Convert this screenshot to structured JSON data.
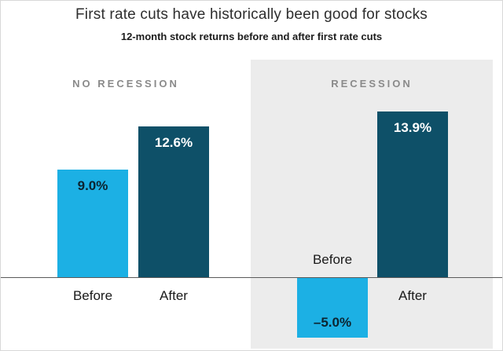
{
  "chart_data": {
    "type": "bar",
    "title": "First rate cuts have historically been good for stocks",
    "subtitle": "12-month stock returns before and after first rate cuts",
    "ylabel": "",
    "xlabel": "",
    "ylim": [
      -6.5,
      15.5
    ],
    "grid": false,
    "legend": "none",
    "colors": {
      "before_bar": "#1cb0e4",
      "after_bar": "#0e5068",
      "light_bar_text": "#0c2430",
      "dark_bar_text": "#ffffff",
      "recession_panel_bg": "#ececec"
    },
    "panels": [
      {
        "label": "NO RECESSION",
        "bars": [
          {
            "category": "Before",
            "value": 9.0,
            "value_label": "9.0%",
            "color": "#1cb0e4",
            "text_color": "#0c2430"
          },
          {
            "category": "After",
            "value": 12.6,
            "value_label": "12.6%",
            "color": "#0e5068",
            "text_color": "#ffffff"
          }
        ]
      },
      {
        "label": "RECESSION",
        "bars": [
          {
            "category": "Before",
            "value": -5.0,
            "value_label": "–5.0%",
            "color": "#1cb0e4",
            "text_color": "#0c2430"
          },
          {
            "category": "After",
            "value": 13.9,
            "value_label": "13.9%",
            "color": "#0e5068",
            "text_color": "#ffffff"
          }
        ]
      }
    ]
  }
}
